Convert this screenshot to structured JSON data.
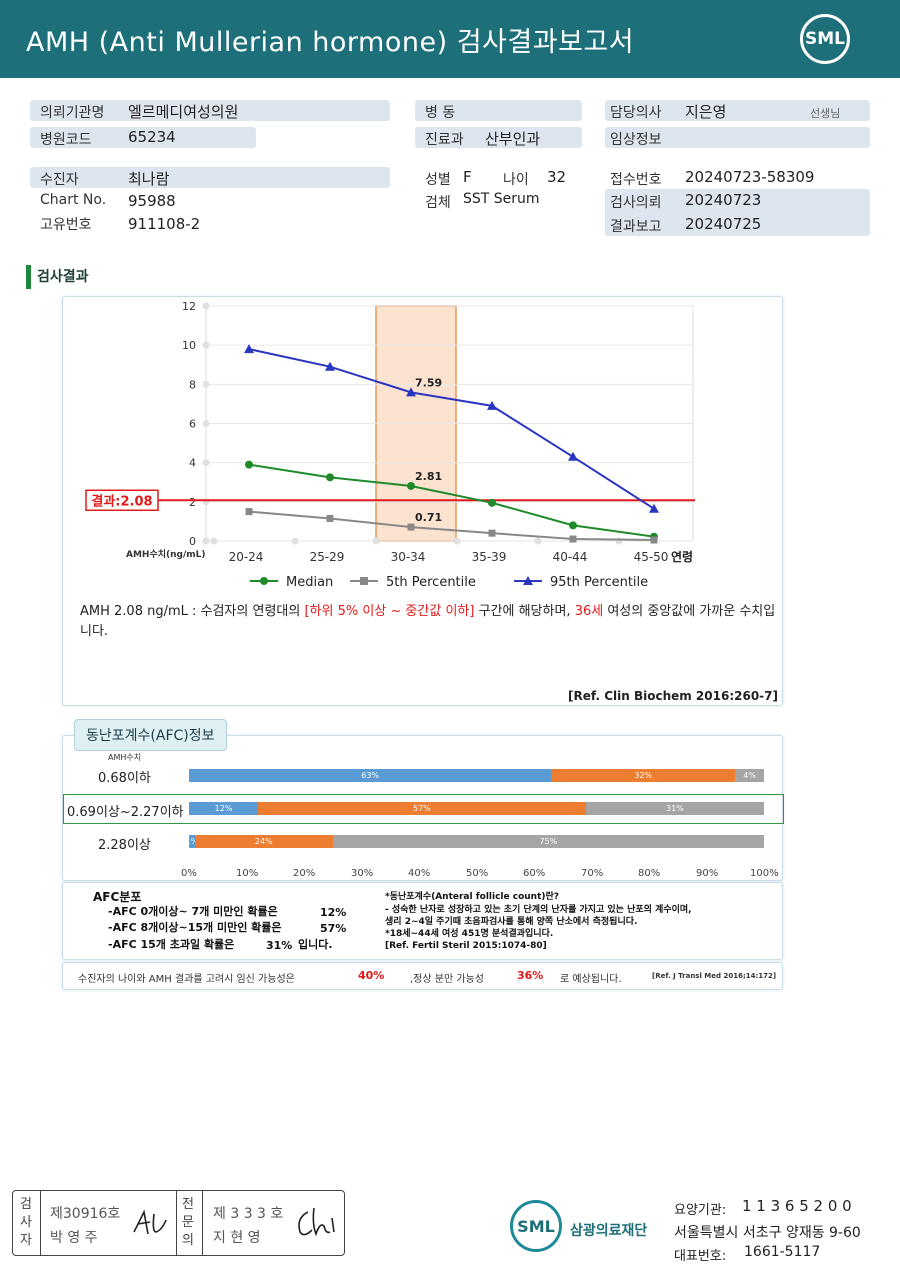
{
  "header": {
    "title": "AMH (Anti Mullerian hormone) 검사결과보고서",
    "logo": "SML"
  },
  "info": {
    "institution_label": "의뢰기관명",
    "institution": "엘르메디여성의원",
    "hospital_code_label": "병원코드",
    "hospital_code": "65234",
    "ward_label": "병 동",
    "ward": "",
    "department_label": "진료과",
    "department": "산부인과",
    "doctor_label": "담당의사",
    "doctor": "지은영",
    "doctor_suffix": "선생님",
    "clinical_label": "임상정보",
    "clinical": "",
    "patient_label": "수진자",
    "patient": "최나람",
    "chart_label": "Chart No.",
    "chart": "95988",
    "id_label": "고유번호",
    "id": "911108-2",
    "sex_label": "성별",
    "sex": "F",
    "age_label": "나이",
    "age": "32",
    "specimen_label": "검체",
    "specimen": "SST Serum",
    "receipt_label": "접수번호",
    "receipt": "20240723-58309",
    "request_label": "검사의뢰",
    "request": "20240723",
    "report_label": "결과보고",
    "report": "20240725"
  },
  "section_title": "검사결과",
  "chart_data": {
    "type": "line",
    "categories": [
      "20-24",
      "25-29",
      "30-34",
      "35-39",
      "40-44",
      "45-50"
    ],
    "xlabel": "연령",
    "ylabel": "AMH수치(ng/mL)",
    "ylim": [
      0,
      12
    ],
    "yticks": [
      0,
      2,
      4,
      6,
      8,
      10,
      12
    ],
    "series": [
      {
        "name": "Median",
        "color": "#1e8a2a",
        "marker": "circle",
        "values": [
          3.9,
          3.25,
          2.81,
          1.95,
          0.8,
          0.22
        ]
      },
      {
        "name": "5th Percentile",
        "color": "#888888",
        "marker": "square",
        "values": [
          1.5,
          1.15,
          0.71,
          0.4,
          0.1,
          0.05
        ]
      },
      {
        "name": "95th Percentile",
        "color": "#2a35c0",
        "marker": "triangle",
        "values": [
          9.8,
          8.9,
          7.59,
          6.9,
          4.3,
          1.65
        ]
      }
    ],
    "highlight_category": "30-34",
    "data_labels": [
      "7.59",
      "2.81",
      "0.71"
    ],
    "result_line": {
      "value": 2.08,
      "label": "결과:2.08",
      "color": "#e01a1a"
    },
    "grid": true,
    "legend": "bottom"
  },
  "interpretation": {
    "p1": "AMH  2.08 ng/mL : 수검자의 연령대의 ",
    "p2": "[하위 5% 이상 ~ 중간값 이하]",
    "p3": " 구간에 해당하며, ",
    "p4": "36세",
    "p5": " 여성의 중앙값에 가까운 수치입니다.",
    "ref": "[Ref. Clin Biochem 2016:260-7]"
  },
  "afc": {
    "title": "동난포계수(AFC)정보",
    "axis_label": "AMH수치",
    "rows": [
      {
        "label": "0.68이하",
        "values": [
          63,
          32,
          4
        ],
        "texts": [
          "63%",
          "32%",
          "4%"
        ]
      },
      {
        "label": "0.69이상~2.27이하",
        "values": [
          12,
          57,
          31
        ],
        "texts": [
          "12%",
          "57%",
          "31%"
        ]
      },
      {
        "label": "2.28이상",
        "values": [
          1,
          24,
          75
        ],
        "texts": [
          "1%",
          "24%",
          "75%"
        ]
      }
    ],
    "xticks": [
      "0%",
      "10%",
      "20%",
      "30%",
      "40%",
      "50%",
      "60%",
      "70%",
      "80%",
      "90%",
      "100%"
    ],
    "dist_title": "AFC분포",
    "d1a": "-AFC  0개이상~ 7개 미만인 확률은",
    "d1b": "12%",
    "d2a": "-AFC  8개이상~15개 미만인 확률은",
    "d2b": "57%",
    "d3a": "-AFC  15개 초과일 확률은",
    "d3b": "31%",
    "d3c": "입니다.",
    "n1": "*동난포계수(Anteral follicle count)란?",
    "n2": "- 성숙한 난자로 성장하고 있는 초기 단계의 난자를 가지고 있는 난포의 계수이며,",
    "n3": "  생리 2~4일 주기때 초음파검사를 통해 양쪽 난소에서 측정됩니다.",
    "n4": "*18세~44세 여성 451명 분석결과입니다.",
    "n5": "[Ref. Fertil Steril 2015:1074-80]"
  },
  "pregnancy": {
    "s1": "수진자의 나이와 AMH 결과를 고려시 임신 가능성은",
    "v1": "40%",
    "s2": ",정상 분만 가능성",
    "v2": "36%",
    "s3": "로 예상됩니다.",
    "ref": "[Ref. J Transl Med 2016;14:172]"
  },
  "footer": {
    "examiner_label": [
      "검",
      "사",
      "자"
    ],
    "examiner_no": "제30916호",
    "examiner_name": "박  영  주",
    "specialist_label": [
      "전",
      "문",
      "의"
    ],
    "specialist_no": "제 3 3 3 호",
    "specialist_name": "지  현  영",
    "org": "삼광의료재단",
    "logo": "SML",
    "code_label": "요양기관:",
    "code": "1 1 3 6 5 2 0 0",
    "address": "서울특별시 서초구 양재동 9-60",
    "phone_label": "대표번호:",
    "phone": "1661-5117"
  }
}
